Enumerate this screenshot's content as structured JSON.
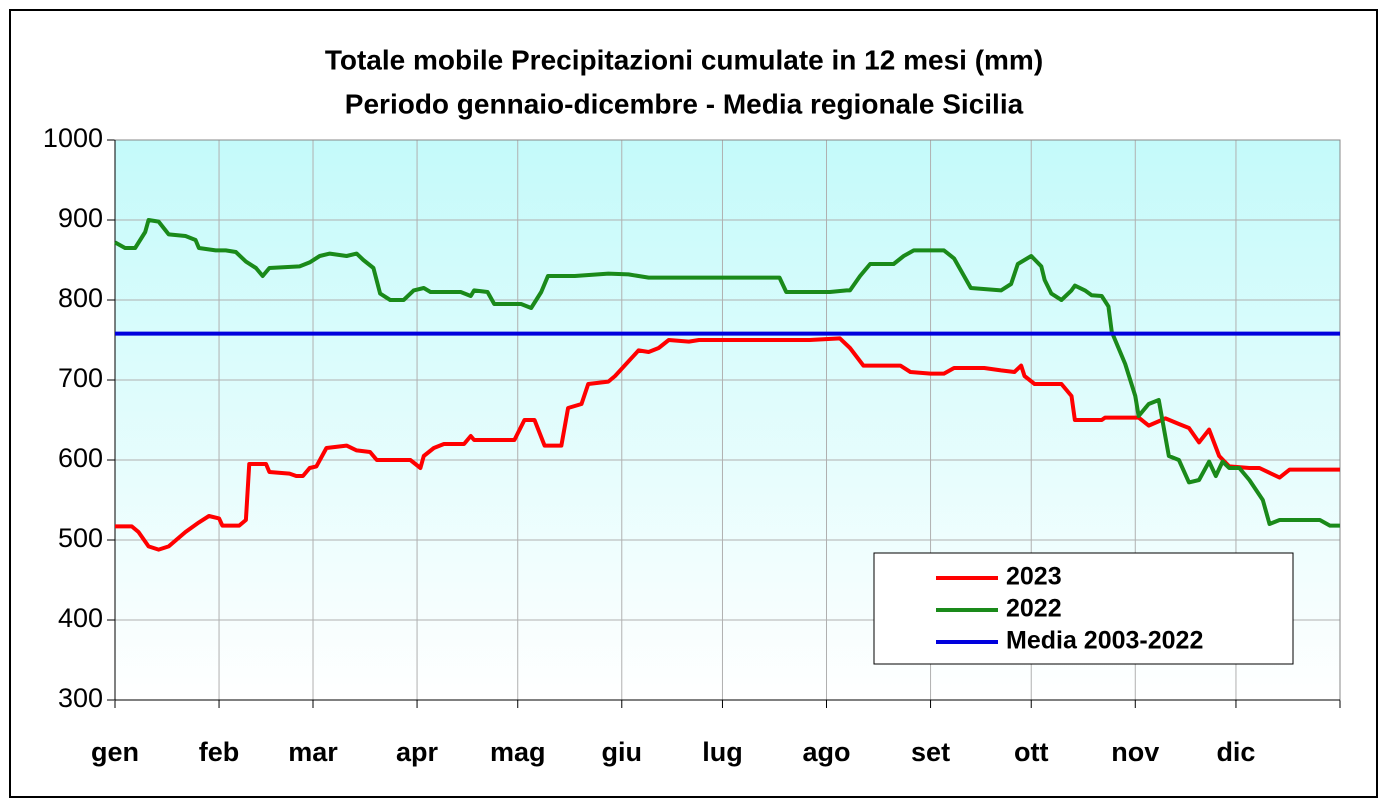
{
  "chart_data": {
    "type": "line",
    "title": "Totale mobile Precipitazioni cumulate in 12 mesi (mm)",
    "subtitle": "Periodo gennaio-dicembre - Media regionale Sicilia",
    "xlim": [
      0,
      365
    ],
    "xticks": [
      {
        "value": 0,
        "label": "gen"
      },
      {
        "value": 31,
        "label": "feb"
      },
      {
        "value": 59,
        "label": "mar"
      },
      {
        "value": 90,
        "label": "apr"
      },
      {
        "value": 120,
        "label": "mag"
      },
      {
        "value": 151,
        "label": "giu"
      },
      {
        "value": 181,
        "label": "lug"
      },
      {
        "value": 212,
        "label": "ago"
      },
      {
        "value": 243,
        "label": "set"
      },
      {
        "value": 273,
        "label": "ott"
      },
      {
        "value": 304,
        "label": "nov"
      },
      {
        "value": 334,
        "label": "dic"
      }
    ],
    "ylim": [
      300,
      1000
    ],
    "yticks": [
      300,
      400,
      500,
      600,
      700,
      800,
      900,
      1000
    ],
    "grid": true,
    "legend": "lower right",
    "series": [
      {
        "name": "2023",
        "color": "#ff0000",
        "x": [
          0,
          5,
          7,
          10,
          13,
          16,
          21,
          25,
          28,
          31,
          32,
          37,
          39,
          40,
          45,
          46,
          52,
          54,
          56,
          58,
          60,
          63,
          69,
          72,
          76,
          78,
          88,
          91,
          92,
          95,
          98,
          104,
          106,
          107,
          119,
          122,
          125,
          128,
          133,
          135,
          139,
          141,
          147,
          149,
          156,
          159,
          162,
          165,
          171,
          174,
          207,
          216,
          219,
          223,
          234,
          237,
          243,
          247,
          250,
          259,
          264,
          268,
          270,
          271,
          274,
          282,
          285,
          286,
          294,
          295,
          305,
          308,
          313,
          317,
          320,
          323,
          326,
          329,
          332,
          338,
          341,
          347,
          350,
          365
        ],
        "values": [
          517,
          517,
          510,
          492,
          488,
          492,
          510,
          522,
          530,
          527,
          518,
          518,
          525,
          595,
          595,
          585,
          583,
          580,
          580,
          590,
          592,
          615,
          618,
          612,
          610,
          600,
          600,
          590,
          605,
          615,
          620,
          620,
          630,
          625,
          625,
          650,
          650,
          618,
          618,
          665,
          670,
          695,
          698,
          705,
          737,
          735,
          740,
          750,
          748,
          750,
          750,
          752,
          740,
          718,
          718,
          710,
          708,
          708,
          715,
          715,
          712,
          710,
          718,
          705,
          695,
          695,
          680,
          650,
          650,
          653,
          653,
          643,
          652,
          645,
          640,
          622,
          638,
          605,
          592,
          590,
          590,
          578,
          588,
          588
        ]
      },
      {
        "name": "2022",
        "color": "#1a8a1a",
        "x": [
          0,
          3,
          6,
          9,
          10,
          13,
          16,
          21,
          24,
          25,
          30,
          33,
          36,
          39,
          42,
          44,
          46,
          55,
          58,
          61,
          64,
          69,
          72,
          74,
          77,
          79,
          82,
          86,
          89,
          92,
          94,
          103,
          106,
          107,
          111,
          113,
          121,
          124,
          127,
          129,
          137,
          147,
          153,
          159,
          174,
          198,
          200,
          213,
          218,
          219,
          222,
          225,
          232,
          235,
          238,
          247,
          250,
          255,
          264,
          267,
          269,
          273,
          276,
          277,
          279,
          282,
          285,
          286,
          289,
          291,
          294,
          296,
          297,
          301,
          304,
          305,
          308,
          311,
          314,
          317,
          320,
          323,
          326,
          328,
          330,
          332,
          335,
          338,
          342,
          344,
          347,
          359,
          362,
          365
        ],
        "values": [
          872,
          865,
          865,
          885,
          900,
          898,
          882,
          880,
          875,
          865,
          862,
          862,
          860,
          848,
          840,
          830,
          840,
          842,
          847,
          855,
          858,
          855,
          858,
          850,
          840,
          808,
          800,
          800,
          812,
          815,
          810,
          810,
          805,
          812,
          810,
          795,
          795,
          790,
          810,
          830,
          830,
          833,
          832,
          828,
          828,
          828,
          810,
          810,
          812,
          812,
          830,
          845,
          845,
          855,
          862,
          862,
          852,
          815,
          812,
          820,
          845,
          855,
          842,
          825,
          808,
          800,
          812,
          818,
          812,
          806,
          805,
          792,
          760,
          720,
          680,
          655,
          670,
          675,
          605,
          600,
          572,
          575,
          598,
          580,
          598,
          590,
          590,
          575,
          550,
          520,
          525,
          525,
          518,
          518
        ]
      },
      {
        "name": "Media 2003-2022",
        "color": "#0000dd",
        "x": [
          0,
          365
        ],
        "values": [
          758,
          758
        ]
      }
    ]
  }
}
